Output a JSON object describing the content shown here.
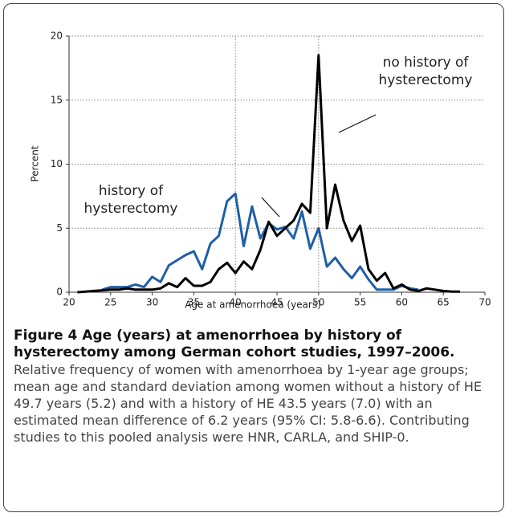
{
  "chart_data": {
    "type": "line",
    "xlabel": "Age at amenorrhoea (years)",
    "ylabel": "Percent",
    "x": [
      21,
      22,
      23,
      24,
      25,
      26,
      27,
      28,
      29,
      30,
      31,
      32,
      33,
      34,
      35,
      36,
      37,
      38,
      39,
      40,
      41,
      42,
      43,
      44,
      45,
      46,
      47,
      48,
      49,
      50,
      51,
      52,
      53,
      54,
      55,
      56,
      57,
      58,
      59,
      60,
      61,
      62,
      63,
      64,
      65,
      66,
      67
    ],
    "series": [
      {
        "name": "history of hysterectomy",
        "color": "#1f5fa8",
        "values": [
          null,
          null,
          null,
          0.2,
          0.4,
          0.4,
          0.4,
          0.6,
          0.4,
          1.2,
          0.8,
          2.1,
          2.5,
          2.9,
          3.2,
          1.8,
          3.8,
          4.4,
          7.1,
          7.7,
          3.6,
          6.7,
          4.2,
          5.4,
          4.9,
          5.1,
          4.2,
          6.3,
          3.4,
          5.0,
          2.0,
          2.7,
          1.8,
          1.1,
          2.0,
          1.0,
          0.2,
          0.2,
          0.2,
          0.5,
          0.3,
          0.2,
          null,
          null,
          null,
          null,
          null
        ]
      },
      {
        "name": "no history of hysterectomy",
        "color": "#000000",
        "values": [
          0,
          0.05,
          0.1,
          0.15,
          0.2,
          0.2,
          0.3,
          0.2,
          0.2,
          0.2,
          0.3,
          0.7,
          0.4,
          1.1,
          0.5,
          0.5,
          0.8,
          1.8,
          2.3,
          1.5,
          2.4,
          1.8,
          3.3,
          5.5,
          4.4,
          5.0,
          5.6,
          6.9,
          6.2,
          18.5,
          5.0,
          8.4,
          5.6,
          4.0,
          5.2,
          1.8,
          0.9,
          1.5,
          0.3,
          0.6,
          0.2,
          0.1,
          0.3,
          0.2,
          0.1,
          0.05,
          0.05
        ]
      }
    ],
    "annotations": [
      {
        "lines": [
          "no history of",
          "hysterectomy"
        ]
      },
      {
        "lines": [
          "history of",
          "hysterectomy"
        ]
      }
    ],
    "xlim": [
      20,
      70
    ],
    "xticks": [
      20,
      25,
      30,
      35,
      40,
      45,
      50,
      55,
      60,
      65,
      70
    ],
    "ylim": [
      0,
      20
    ],
    "yticks": [
      0,
      5,
      10,
      15,
      20
    ],
    "x_grid_lines": [
      40,
      50
    ],
    "grid": true
  },
  "caption": {
    "title": "Figure 4 Age (years) at amenorrhoea by history of hysterectomy among German cohort studies, 1997–2006.",
    "text": "Relative frequency of women with amenorrhoea by 1-year age groups; mean age and standard deviation among women without a history of HE 49.7 years (5.2) and with a history of HE 43.5 years (7.0) with an estimated mean difference of 6.2 years (95% CI: 5.8-6.6). Contributing studies to this pooled analysis were HNR, CARLA, and SHIP-0."
  }
}
